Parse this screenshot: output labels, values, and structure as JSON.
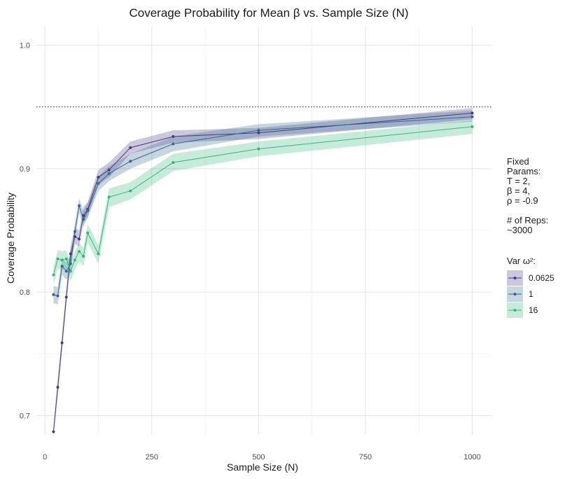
{
  "chart_data": {
    "type": "line",
    "title": "Coverage Probability for Mean β vs. Sample Size (N)",
    "xlabel": "Sample Size (N)",
    "ylabel": "Coverage Probability",
    "xlim": [
      -20,
      1045
    ],
    "ylim": [
      0.685,
      1.015
    ],
    "xticks": [
      0,
      250,
      500,
      750,
      1000
    ],
    "xtick_labels": [
      "0",
      "250",
      "500",
      "750",
      "1000"
    ],
    "yticks": [
      0.7,
      0.8,
      0.9,
      1.0
    ],
    "ytick_labels": [
      "0.7",
      "0.8",
      "0.9",
      "1.0"
    ],
    "reference_line": 0.95,
    "grid": true,
    "legend_placement": "right",
    "legend_note_lines": [
      "Fixed",
      "Params:",
      "T = 2,",
      "β = 4,",
      "ρ = -0.9",
      "",
      "# of Reps:",
      "~3000"
    ],
    "legend_title": "Var ω²:",
    "x": [
      20,
      30,
      40,
      50,
      60,
      70,
      80,
      90,
      100,
      125,
      150,
      200,
      300,
      500,
      1000
    ],
    "series": [
      {
        "name": "0.0625",
        "color": "#443a83",
        "values": [
          0.687,
          0.723,
          0.759,
          0.796,
          0.831,
          0.845,
          0.843,
          0.862,
          0.867,
          0.893,
          0.899,
          0.917,
          0.926,
          0.929,
          0.945
        ],
        "lower": [
          0.683,
          0.716,
          0.752,
          0.789,
          0.824,
          0.839,
          0.837,
          0.856,
          0.861,
          0.887,
          0.893,
          0.912,
          0.921,
          0.924,
          0.94
        ],
        "upper": [
          0.692,
          0.73,
          0.766,
          0.803,
          0.838,
          0.852,
          0.85,
          0.869,
          0.873,
          0.899,
          0.905,
          0.922,
          0.931,
          0.933,
          0.949
        ]
      },
      {
        "name": "1",
        "color": "#31688e",
        "values": [
          0.798,
          0.797,
          0.821,
          0.817,
          0.823,
          0.849,
          0.87,
          0.859,
          0.866,
          0.888,
          0.896,
          0.906,
          0.92,
          0.931,
          0.942
        ],
        "lower": [
          0.791,
          0.79,
          0.814,
          0.81,
          0.816,
          0.842,
          0.864,
          0.853,
          0.86,
          0.882,
          0.89,
          0.9,
          0.914,
          0.926,
          0.938
        ],
        "upper": [
          0.805,
          0.804,
          0.828,
          0.824,
          0.83,
          0.856,
          0.876,
          0.866,
          0.872,
          0.894,
          0.902,
          0.912,
          0.926,
          0.936,
          0.947
        ]
      },
      {
        "name": "16",
        "color": "#35b779",
        "values": [
          0.814,
          0.827,
          0.826,
          0.827,
          0.817,
          0.826,
          0.833,
          0.829,
          0.848,
          0.831,
          0.877,
          0.882,
          0.905,
          0.916,
          0.934
        ],
        "lower": [
          0.806,
          0.819,
          0.818,
          0.819,
          0.809,
          0.818,
          0.825,
          0.821,
          0.84,
          0.823,
          0.869,
          0.875,
          0.898,
          0.91,
          0.928
        ],
        "upper": [
          0.821,
          0.834,
          0.833,
          0.834,
          0.824,
          0.833,
          0.84,
          0.836,
          0.855,
          0.838,
          0.884,
          0.889,
          0.912,
          0.922,
          0.939
        ]
      }
    ]
  }
}
